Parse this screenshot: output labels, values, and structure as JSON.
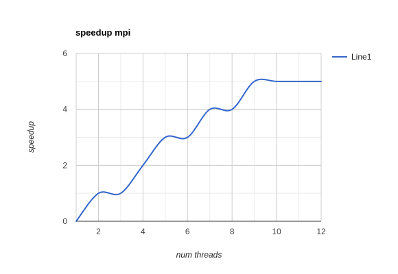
{
  "chart_data": {
    "type": "line",
    "title": "speedup mpi",
    "xlabel": "num threads",
    "ylabel": "speedup",
    "xlim": [
      1,
      12
    ],
    "ylim": [
      0,
      6
    ],
    "x_ticks": [
      2,
      4,
      6,
      8,
      10,
      12
    ],
    "y_ticks": [
      0,
      2,
      4,
      6
    ],
    "x_minor_step": 1,
    "y_minor_step": 1,
    "grid": true,
    "legend": "right",
    "curve": "smooth",
    "series": [
      {
        "name": "Line1",
        "color": "#3366cc",
        "x": [
          1,
          2,
          3,
          4,
          5,
          6,
          7,
          8,
          9,
          10,
          11,
          12
        ],
        "y": [
          0,
          1,
          1,
          2,
          3,
          3,
          4,
          4,
          5,
          5,
          5,
          5
        ]
      }
    ]
  }
}
